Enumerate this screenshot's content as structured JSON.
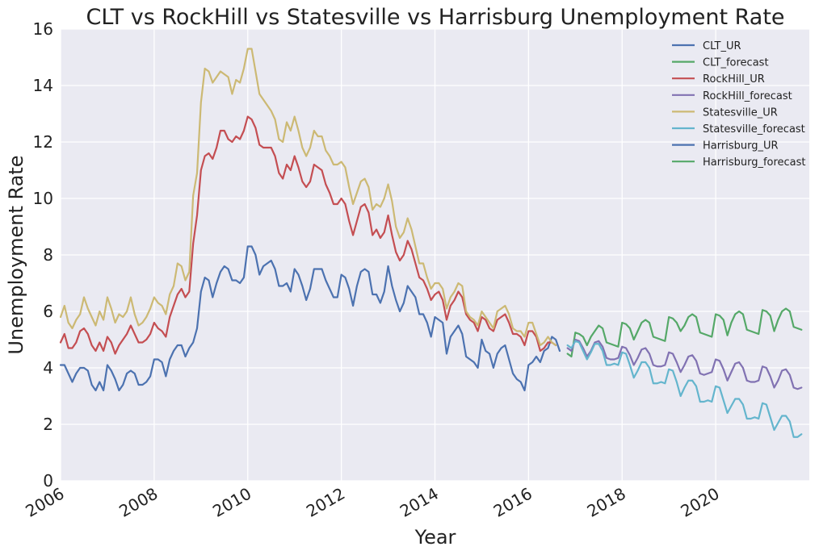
{
  "chart_data": {
    "type": "line",
    "title": "CLT vs RockHill vs Statesville vs Harrisburg Unemployment Rate",
    "xlabel": "Year",
    "ylabel": "Unemployment Rate",
    "xlim": [
      2006.0,
      2022.0
    ],
    "ylim": [
      0,
      16
    ],
    "yticks": [
      0,
      2,
      4,
      6,
      8,
      10,
      12,
      14,
      16
    ],
    "xticks": [
      {
        "value": 2006,
        "label": "2006"
      },
      {
        "value": 2008,
        "label": "2008"
      },
      {
        "value": 2010,
        "label": "2010"
      },
      {
        "value": 2012,
        "label": "2012"
      },
      {
        "value": 2014,
        "label": "2014"
      },
      {
        "value": 2016,
        "label": "2016"
      },
      {
        "value": 2018,
        "label": "2018"
      },
      {
        "value": 2020,
        "label": "2020"
      }
    ],
    "grid": true,
    "legend_position": "top-right",
    "x_unit": "year",
    "series": [
      {
        "name": "CLT_UR",
        "color": "#4c72b0",
        "x_start": 2006.0,
        "x_step": 0.08333,
        "values": [
          4.1,
          4.1,
          3.8,
          3.5,
          3.8,
          4.0,
          4.0,
          3.9,
          3.4,
          3.2,
          3.5,
          3.2,
          4.1,
          3.9,
          3.6,
          3.2,
          3.4,
          3.8,
          3.9,
          3.8,
          3.4,
          3.4,
          3.5,
          3.7,
          4.3,
          4.3,
          4.2,
          3.7,
          4.3,
          4.6,
          4.8,
          4.8,
          4.4,
          4.7,
          4.9,
          5.4,
          6.7,
          7.2,
          7.1,
          6.5,
          7.0,
          7.4,
          7.6,
          7.5,
          7.1,
          7.1,
          7.0,
          7.2,
          8.3,
          8.3,
          8.0,
          7.3,
          7.6,
          7.7,
          7.8,
          7.5,
          6.9,
          6.9,
          7.0,
          6.7,
          7.5,
          7.3,
          6.9,
          6.4,
          6.8,
          7.5,
          7.5,
          7.5,
          7.1,
          6.8,
          6.5,
          6.5,
          7.3,
          7.2,
          6.8,
          6.2,
          6.9,
          7.4,
          7.5,
          7.4,
          6.6,
          6.6,
          6.3,
          6.7,
          7.6,
          6.9,
          6.4,
          6.0,
          6.3,
          6.9,
          6.7,
          6.5,
          5.9,
          5.9,
          5.6,
          5.1,
          5.8,
          5.7,
          5.6,
          4.5,
          5.1,
          5.3,
          5.5,
          5.2,
          4.4,
          4.3,
          4.2,
          4.0,
          5.0,
          4.6,
          4.5,
          4.0,
          4.5,
          4.7,
          4.8,
          4.3,
          3.8,
          3.6,
          3.5,
          3.2,
          4.1,
          4.2,
          4.4,
          4.2,
          4.6,
          4.7,
          5.1,
          5.0,
          4.6
        ]
      },
      {
        "name": "CLT_forecast",
        "color": "#55a868",
        "x_start": 2016.833,
        "x_step": 0.08333,
        "values": [
          4.5,
          4.4,
          5.25,
          5.2,
          5.1,
          4.8,
          5.1,
          5.3,
          5.5,
          5.4,
          4.9,
          4.85,
          4.8,
          4.75,
          5.6,
          5.55,
          5.4,
          5.0,
          5.3,
          5.6,
          5.7,
          5.6,
          5.1,
          5.05,
          5.0,
          4.95,
          5.8,
          5.75,
          5.6,
          5.3,
          5.5,
          5.8,
          5.9,
          5.8,
          5.25,
          5.2,
          5.15,
          5.1,
          5.9,
          5.85,
          5.7,
          5.15,
          5.6,
          5.9,
          6.0,
          5.9,
          5.35,
          5.3,
          5.25,
          5.2,
          6.05,
          6.0,
          5.85,
          5.3,
          5.7,
          6.0,
          6.1,
          6.0,
          5.45,
          5.4,
          5.35
        ]
      },
      {
        "name": "RockHill_UR",
        "color": "#c44e52",
        "x_start": 2006.0,
        "x_step": 0.08333,
        "values": [
          4.9,
          5.2,
          4.7,
          4.7,
          4.9,
          5.3,
          5.4,
          5.2,
          4.8,
          4.6,
          4.9,
          4.6,
          5.1,
          4.9,
          4.5,
          4.8,
          5.0,
          5.2,
          5.5,
          5.2,
          4.9,
          4.9,
          5.0,
          5.2,
          5.6,
          5.4,
          5.3,
          5.1,
          5.8,
          6.2,
          6.6,
          6.8,
          6.5,
          6.7,
          8.4,
          9.4,
          11.0,
          11.5,
          11.6,
          11.4,
          11.8,
          12.4,
          12.4,
          12.1,
          12.0,
          12.2,
          12.1,
          12.4,
          12.9,
          12.8,
          12.5,
          11.9,
          11.8,
          11.8,
          11.8,
          11.5,
          10.9,
          10.7,
          11.2,
          11.0,
          11.5,
          11.1,
          10.6,
          10.4,
          10.6,
          11.2,
          11.1,
          11.0,
          10.5,
          10.2,
          9.8,
          9.8,
          10.0,
          9.8,
          9.2,
          8.7,
          9.2,
          9.7,
          9.8,
          9.5,
          8.7,
          8.9,
          8.6,
          8.8,
          9.4,
          8.7,
          8.1,
          7.8,
          8.0,
          8.5,
          8.2,
          7.7,
          7.2,
          7.1,
          6.8,
          6.4,
          6.6,
          6.7,
          6.4,
          5.7,
          6.2,
          6.4,
          6.7,
          6.5,
          5.9,
          5.7,
          5.6,
          5.3,
          5.8,
          5.7,
          5.4,
          5.3,
          5.7,
          5.8,
          5.9,
          5.6,
          5.2,
          5.2,
          5.1,
          4.8,
          5.3,
          5.3,
          5.1,
          4.6,
          4.7,
          4.9,
          4.9,
          4.8
        ]
      },
      {
        "name": "RockHill_forecast",
        "color": "#8172b2",
        "x_start": 2016.833,
        "x_step": 0.08333,
        "values": [
          4.7,
          4.6,
          5.0,
          4.95,
          4.7,
          4.4,
          4.6,
          4.9,
          4.95,
          4.75,
          4.35,
          4.3,
          4.3,
          4.35,
          4.75,
          4.7,
          4.45,
          4.1,
          4.35,
          4.65,
          4.7,
          4.5,
          4.1,
          4.05,
          4.05,
          4.1,
          4.55,
          4.5,
          4.2,
          3.85,
          4.1,
          4.4,
          4.45,
          4.25,
          3.8,
          3.75,
          3.8,
          3.85,
          4.3,
          4.25,
          3.95,
          3.55,
          3.85,
          4.15,
          4.2,
          4.0,
          3.55,
          3.5,
          3.5,
          3.55,
          4.05,
          4.0,
          3.7,
          3.3,
          3.55,
          3.9,
          3.95,
          3.75,
          3.3,
          3.25,
          3.3
        ]
      },
      {
        "name": "Statesville_UR",
        "color": "#ccb974",
        "x_start": 2006.0,
        "x_step": 0.08333,
        "values": [
          5.8,
          6.2,
          5.6,
          5.4,
          5.7,
          5.9,
          6.5,
          6.1,
          5.8,
          5.5,
          6.0,
          5.7,
          6.5,
          6.1,
          5.6,
          5.9,
          5.8,
          6.0,
          6.5,
          5.9,
          5.5,
          5.6,
          5.8,
          6.1,
          6.5,
          6.3,
          6.2,
          5.9,
          6.6,
          6.9,
          7.7,
          7.6,
          7.1,
          7.4,
          10.1,
          10.9,
          13.4,
          14.6,
          14.5,
          14.1,
          14.3,
          14.5,
          14.4,
          14.3,
          13.7,
          14.2,
          14.1,
          14.6,
          15.3,
          15.3,
          14.5,
          13.7,
          13.5,
          13.3,
          13.1,
          12.8,
          12.1,
          12.0,
          12.7,
          12.4,
          12.9,
          12.4,
          11.8,
          11.5,
          11.8,
          12.4,
          12.2,
          12.2,
          11.7,
          11.5,
          11.2,
          11.2,
          11.3,
          11.1,
          10.4,
          9.8,
          10.2,
          10.6,
          10.7,
          10.4,
          9.6,
          9.8,
          9.7,
          10.0,
          10.5,
          9.9,
          9.0,
          8.6,
          8.8,
          9.3,
          8.9,
          8.3,
          7.7,
          7.7,
          7.2,
          6.8,
          7.0,
          7.0,
          6.8,
          6.1,
          6.5,
          6.7,
          7.0,
          6.9,
          6.0,
          5.8,
          5.7,
          5.5,
          6.0,
          5.8,
          5.6,
          5.4,
          6.0,
          6.1,
          6.2,
          5.9,
          5.4,
          5.3,
          5.3,
          5.1,
          5.6,
          5.6,
          5.2,
          4.8,
          4.9,
          5.1,
          4.9,
          4.8
        ]
      },
      {
        "name": "Statesville_forecast",
        "color": "#64b5cd",
        "x_start": 2016.833,
        "x_step": 0.08333,
        "values": [
          4.8,
          4.7,
          4.95,
          4.9,
          4.6,
          4.3,
          4.55,
          4.85,
          4.85,
          4.6,
          4.1,
          4.1,
          4.15,
          4.1,
          4.55,
          4.5,
          4.1,
          3.65,
          3.9,
          4.2,
          4.2,
          4.0,
          3.45,
          3.45,
          3.5,
          3.45,
          3.95,
          3.9,
          3.5,
          3.0,
          3.3,
          3.55,
          3.55,
          3.35,
          2.8,
          2.8,
          2.85,
          2.8,
          3.35,
          3.3,
          2.85,
          2.4,
          2.65,
          2.9,
          2.9,
          2.7,
          2.2,
          2.2,
          2.25,
          2.2,
          2.75,
          2.7,
          2.25,
          1.8,
          2.05,
          2.3,
          2.3,
          2.1,
          1.55,
          1.55,
          1.65
        ]
      },
      {
        "name": "Harrisburg_UR",
        "color": "#4c72b0",
        "x_start": 2016.833,
        "x_step": 0.08333,
        "values": []
      },
      {
        "name": "Harrisburg_forecast",
        "color": "#55a868",
        "x_start": 2016.833,
        "x_step": 0.08333,
        "values": []
      }
    ]
  }
}
